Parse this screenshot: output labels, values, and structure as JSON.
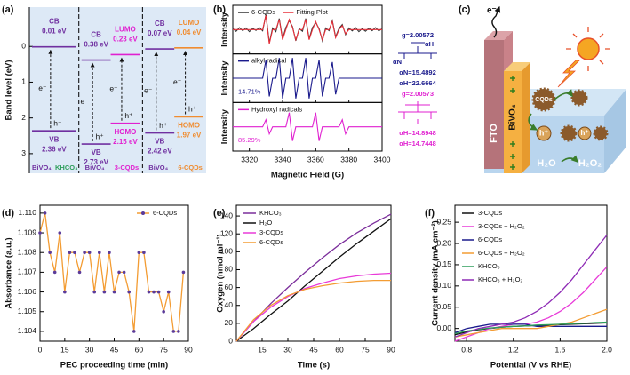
{
  "chart_data": [
    {
      "type": "band",
      "label": "(a)",
      "ylabel": "Band level (eV)",
      "ylim": [
        -1.1,
        3.55
      ],
      "y_inverted": true,
      "yticks": [
        0,
        1,
        2,
        3
      ],
      "carriers": {
        "electron": "e⁻",
        "hole": "h⁺"
      },
      "columns": [
        {
          "materials": [
            {
              "name": "BiVO₄",
              "color": "#7030a0",
              "levels": [
                {
                  "name": "CB",
                  "value": 0.01,
                  "value_label": "0.01 eV"
                },
                {
                  "name": "VB",
                  "value": 2.36,
                  "value_label": "2.36 eV"
                }
              ]
            },
            {
              "name": "KHCO₃",
              "color": "#2e9e5b"
            }
          ]
        },
        {
          "materials": [
            {
              "name": "BiVO₄",
              "color": "#7030a0",
              "levels": [
                {
                  "name": "CB",
                  "value": 0.38,
                  "value_label": "0.38 eV"
                },
                {
                  "name": "VB",
                  "value": 2.73,
                  "value_label": "2.73 eV"
                }
              ]
            },
            {
              "name": "3-CQDs",
              "color": "#e020d0",
              "levels": [
                {
                  "name": "LUMO",
                  "value": 0.23,
                  "value_label": "0.23 eV"
                },
                {
                  "name": "HOMO",
                  "value": 2.15,
                  "value_label": "2.15 eV"
                }
              ]
            }
          ]
        },
        {
          "materials": [
            {
              "name": "BiVO₄",
              "color": "#7030a0",
              "levels": [
                {
                  "name": "CB",
                  "value": 0.07,
                  "value_label": "0.07 eV"
                },
                {
                  "name": "VB",
                  "value": 2.42,
                  "value_label": "2.42 eV"
                }
              ]
            },
            {
              "name": "6-CQDs",
              "color": "#f08c30",
              "levels": [
                {
                  "name": "LUMO",
                  "value": 0.04,
                  "value_label": "0.04 eV"
                },
                {
                  "name": "HOMO",
                  "value": 1.97,
                  "value_label": "1.97 eV"
                }
              ]
            }
          ]
        }
      ]
    },
    {
      "type": "epr",
      "label": "(b)",
      "xlabel": "Magnetic Field (G)",
      "xlim": [
        3310,
        3400
      ],
      "xticks": [
        3320,
        3340,
        3360,
        3380,
        3400
      ],
      "x": [
        3310,
        3312,
        3314,
        3316,
        3318,
        3320,
        3322,
        3324,
        3326,
        3328,
        3330,
        3332,
        3334,
        3336,
        3338,
        3340,
        3342,
        3344,
        3346,
        3348,
        3350,
        3352,
        3354,
        3356,
        3358,
        3360,
        3362,
        3364,
        3366,
        3368,
        3370,
        3372,
        3374,
        3376,
        3378,
        3380,
        3382,
        3384,
        3386,
        3388,
        3390,
        3392,
        3394,
        3396,
        3398,
        3400
      ],
      "subplots": [
        {
          "ylabel": "Intensity",
          "ylim": [
            -1.2,
            1.2
          ],
          "series": [
            {
              "name": "6-CQDs",
              "color": "#333333",
              "values": [
                0.05,
                -0.08,
                0.1,
                -0.05,
                0.08,
                -0.1,
                0.06,
                -0.04,
                0.1,
                -0.06,
                0.75,
                -0.65,
                0.08,
                -0.1,
                0.55,
                -0.45,
                0.1,
                0.45,
                0.15,
                -0.55,
                0.05,
                -0.08,
                0.55,
                -0.45,
                0.1,
                0.35,
                0.05,
                -0.55,
                0.08,
                -0.05,
                0.45,
                -0.35,
                0.06,
                0.25,
                -0.25,
                0.08,
                -0.06,
                0.1,
                -0.1,
                0.05,
                -0.08,
                0.07,
                -0.05,
                0.1,
                -0.06,
                0.04
              ]
            },
            {
              "name": "Fitting Plot",
              "color": "#e8303a",
              "values": [
                0,
                0,
                0,
                0,
                0,
                0,
                0,
                0,
                0,
                0,
                0.7,
                -0.7,
                0,
                0,
                0.5,
                -0.5,
                0,
                0.5,
                0.1,
                -0.5,
                0,
                0,
                0.5,
                -0.5,
                0,
                0.4,
                0,
                -0.5,
                0,
                0,
                0.4,
                -0.4,
                0,
                0.2,
                -0.2,
                0,
                0,
                0,
                0,
                0,
                0,
                0,
                0,
                0,
                0,
                0
              ]
            }
          ]
        },
        {
          "ylabel": "Intensity",
          "ylim": [
            -1.2,
            1.2
          ],
          "note": "14.71%",
          "series": [
            {
              "name": "alkyl radical",
              "color": "#1a1a8c",
              "values": [
                0,
                0,
                0,
                0,
                0,
                0,
                0,
                0,
                0,
                0,
                0.9,
                -0.9,
                0,
                0,
                1,
                -1,
                0,
                0,
                1,
                -1,
                0,
                0,
                1,
                -1,
                0,
                0,
                0.9,
                -0.9,
                0,
                0,
                0.8,
                -0.8,
                0,
                0,
                0,
                0,
                0,
                0,
                0,
                0,
                0,
                0,
                0,
                0,
                0,
                0
              ]
            }
          ]
        },
        {
          "ylabel": "Intensity",
          "ylim": [
            -1.2,
            1.2
          ],
          "note": "85.29%",
          "series": [
            {
              "name": "Hydroxyl radicals",
              "color": "#e020d0",
              "values": [
                0,
                0,
                0,
                0,
                0,
                0,
                0,
                0,
                0,
                0,
                0.35,
                -0.35,
                0,
                0,
                0,
                0,
                0,
                0.7,
                -0.7,
                0,
                0,
                0,
                0,
                0,
                0,
                0.7,
                -0.7,
                0,
                0,
                0,
                0,
                0,
                0,
                0.35,
                -0.35,
                0,
                0,
                0,
                0,
                0,
                0,
                0,
                0,
                0,
                0,
                0
              ]
            }
          ]
        }
      ],
      "annotations": [
        {
          "text": "g=2.00572",
          "color": "#1a1a8c"
        },
        {
          "text": "αH",
          "color": "#1a1a8c"
        },
        {
          "text": "αN",
          "color": "#1a1a8c"
        },
        {
          "text": "αN=15.4892",
          "color": "#1a1a8c"
        },
        {
          "text": "αH=22.6664",
          "color": "#1a1a8c"
        },
        {
          "text": "g=2.00573",
          "color": "#e020d0"
        },
        {
          "text": "αH=14.8948",
          "color": "#e020d0"
        },
        {
          "text": "αH=14.7448",
          "color": "#e020d0"
        }
      ]
    },
    {
      "type": "line",
      "label": "(d)",
      "xlabel": "PEC proceeding time (min)",
      "ylabel": "Absorbance (a.u.)",
      "xlim": [
        0,
        90
      ],
      "xticks": [
        0,
        15,
        30,
        45,
        60,
        75,
        90
      ],
      "ylim": [
        1.1035,
        1.1104
      ],
      "yticks": [
        1.104,
        1.105,
        1.106,
        1.107,
        1.108,
        1.109,
        {
          "value": 1.11,
          "label": "1.110"
        }
      ],
      "legend": "upper right",
      "x": [
        0,
        3,
        6,
        9,
        12,
        15,
        18,
        21,
        24,
        27,
        30,
        33,
        36,
        39,
        42,
        45,
        48,
        51,
        54,
        57,
        60,
        63,
        66,
        69,
        72,
        75,
        78,
        81,
        84,
        87
      ],
      "series": [
        {
          "name": "6-CQDs",
          "color": "#f39c33",
          "marker_color": "#5b3b9a",
          "values": [
            1.109,
            1.11,
            1.108,
            1.107,
            1.109,
            1.106,
            1.108,
            1.108,
            1.107,
            1.108,
            1.108,
            1.106,
            1.108,
            1.106,
            1.108,
            1.106,
            1.107,
            1.107,
            1.106,
            1.104,
            1.108,
            1.108,
            1.106,
            1.106,
            1.106,
            1.105,
            1.106,
            1.104,
            1.104,
            1.107
          ]
        }
      ]
    },
    {
      "type": "line",
      "label": "(e)",
      "xlabel": "Time (s)",
      "ylabel": "Oxygen (nmol ml⁻¹)",
      "xlim": [
        0,
        90
      ],
      "xticks": [
        15,
        30,
        45,
        60,
        75,
        90
      ],
      "ylim": [
        0,
        152
      ],
      "yticks": [
        0,
        20,
        40,
        60,
        80,
        100,
        120,
        140
      ],
      "legend": "upper left",
      "x": [
        0,
        10,
        20,
        30,
        40,
        50,
        60,
        70,
        80,
        90
      ],
      "series": [
        {
          "name": "KHCO₃",
          "color": "#7b2d9b",
          "values": [
            0,
            22,
            42,
            60,
            77,
            93,
            108,
            121,
            132,
            142
          ]
        },
        {
          "name": "H₂O",
          "color": "#111111",
          "values": [
            0,
            14,
            30,
            45,
            62,
            78,
            94,
            109,
            123,
            137
          ]
        },
        {
          "name": "3-CQDs",
          "color": "#e83ad8",
          "values": [
            0,
            22,
            38,
            50,
            59,
            65,
            70,
            73,
            75,
            76
          ]
        },
        {
          "name": "6-CQDs",
          "color": "#f39c33",
          "values": [
            0,
            24,
            40,
            51,
            58,
            62,
            65,
            67,
            68,
            68
          ]
        }
      ]
    },
    {
      "type": "line",
      "label": "(f)",
      "xlabel": "Potential (V vs RHE)",
      "ylabel": "Current density (mA cm⁻²)",
      "xlim": [
        0.7,
        2
      ],
      "xticks": [
        0.8,
        1.2,
        1.6,
        {
          "value": 2,
          "label": "2.0"
        }
      ],
      "ylim": [
        -0.03,
        0.29
      ],
      "yticks": [
        {
          "value": 0,
          "label": "0.00"
        },
        0.05,
        {
          "value": 0.1,
          "label": "0.10"
        },
        0.15,
        {
          "value": 0.2,
          "label": "0.20"
        },
        0.25
      ],
      "legend": "upper left",
      "x": [
        0.7,
        0.8,
        0.9,
        1.0,
        1.1,
        1.2,
        1.3,
        1.4,
        1.5,
        1.6,
        1.7,
        1.8,
        1.9,
        2.0
      ],
      "series": [
        {
          "name": "3-CQDs",
          "color": "#111111",
          "values": [
            -0.015,
            -0.008,
            -0.003,
            0,
            0.003,
            0.005,
            0.006,
            0.007,
            0.008,
            0.009,
            0.01,
            0.011,
            0.012,
            0.013
          ]
        },
        {
          "name": "3-CQDs + H₂O₂",
          "color": "#e83ad8",
          "values": [
            -0.03,
            -0.02,
            -0.01,
            0,
            0.005,
            0.01,
            0.01,
            0.015,
            0.025,
            0.04,
            0.06,
            0.085,
            0.115,
            0.145
          ]
        },
        {
          "name": "6-CQDs",
          "color": "#1a1a8c",
          "values": [
            -0.01,
            0,
            0.005,
            0.01,
            0.01,
            0.01,
            0.01,
            0.005,
            0.005,
            0.005,
            0.005,
            0.005,
            0.005,
            0.005
          ]
        },
        {
          "name": "6-CQDs + H₂O₂",
          "color": "#f39c33",
          "values": [
            -0.02,
            -0.015,
            -0.01,
            -0.005,
            0,
            0,
            0,
            0,
            0.005,
            0.01,
            0.015,
            0.025,
            0.035,
            0.045
          ]
        },
        {
          "name": "KHCO₃",
          "color": "#2e9e5b",
          "values": [
            -0.012,
            -0.006,
            -0.002,
            0.001,
            0.003,
            0.005,
            0.006,
            0.008,
            0.009,
            0.01,
            0.011,
            0.012,
            0.014,
            0.015
          ]
        },
        {
          "name": "KHCO₃ + H₂O₂",
          "color": "#8e2bb5",
          "values": [
            -0.02,
            -0.01,
            0,
            0.005,
            0.01,
            0.015,
            0.025,
            0.04,
            0.06,
            0.085,
            0.115,
            0.15,
            0.185,
            0.22
          ]
        }
      ]
    }
  ],
  "schematic": {
    "label": "(c)",
    "electron": "e⁻",
    "fto": "FTO",
    "photoanode": "BiVO₄",
    "quantum_dots": "CQDs",
    "hole": "h⁺",
    "reactant": "H₂O",
    "product": "H₂O₂"
  }
}
